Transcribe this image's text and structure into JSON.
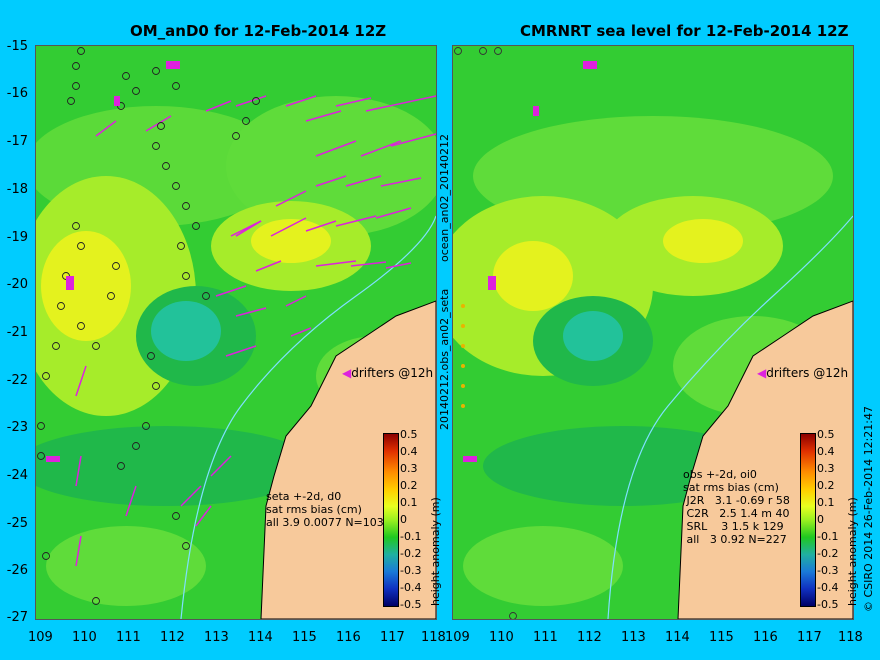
{
  "left_panel": {
    "title": "OM_anD0 for 12-Feb-2014 12Z",
    "stats": "seta +-2d, d0\nsat rms bias (cm)\nall 3.9 0.0077 N=103",
    "drifters_label": "drifters @12h",
    "colorbar_label": "height anomaly (m)"
  },
  "right_panel": {
    "title": "CMRNRT sea level  for 12-Feb-2014 12Z",
    "stats": "obs +-2d, oi0\nsat rms bias (cm)\n J2R   3.1 -0.69 r 58\n C2R   2.5 1.4 m 40\n SRL    3 1.5 k 129\n all   3 0.92 N=227",
    "drifters_label": "drifters @12h",
    "colorbar_label": "height anomaly (m)"
  },
  "side_label": "ocean_an02_20140212",
  "side_label_2": "20140212.obs_an02_seta",
  "credit": "© CSIRO 2014   26-Feb-2014 12:21:47",
  "axes": {
    "x_ticks": [
      "109",
      "110",
      "111",
      "112",
      "113",
      "114",
      "115",
      "116",
      "117",
      "118"
    ],
    "y_ticks": [
      "-15",
      "-16",
      "-17",
      "-18",
      "-19",
      "-20",
      "-21",
      "-22",
      "-23",
      "-24",
      "-25",
      "-26",
      "-27"
    ],
    "lon_range": [
      109,
      118
    ],
    "lat_range": [
      -27,
      -15
    ]
  },
  "colorbar": {
    "ticks": [
      "0.5",
      "0.4",
      "0.3",
      "0.2",
      "0.1",
      "0",
      "-0.1",
      "-0.2",
      "-0.3",
      "-0.4",
      "-0.5"
    ],
    "range": [
      -0.5,
      0.5
    ]
  },
  "colors": {
    "background": "#00ccff",
    "land": "#f7c99b",
    "ocean_base": "#33cc33",
    "drifter": "#dd22dd"
  }
}
